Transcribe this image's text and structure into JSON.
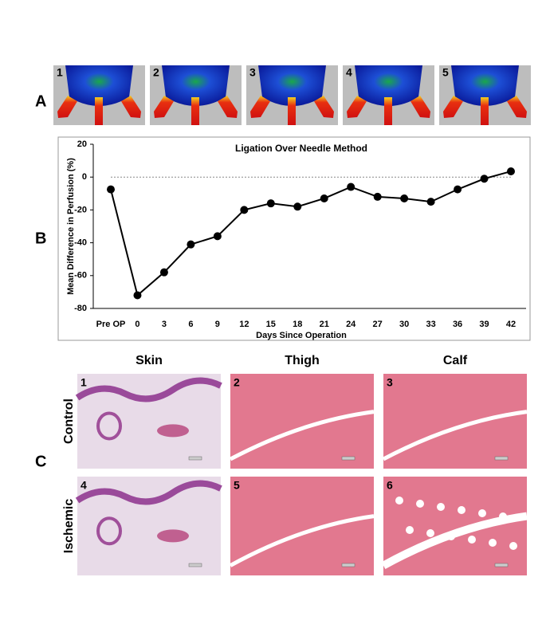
{
  "figure": {
    "panel_labels": [
      "A",
      "B",
      "C"
    ],
    "images_a": [
      "1",
      "2",
      "3",
      "4",
      "5"
    ],
    "columns": [
      "Skin",
      "Thigh",
      "Calf"
    ],
    "rows": [
      "Control",
      "Ischemic"
    ],
    "histology_numbers": [
      "1",
      "2",
      "3",
      "4",
      "5",
      "6"
    ]
  },
  "chart_data": {
    "type": "line",
    "title": "Ligation Over Needle Method",
    "x_label": "Days Since Operation",
    "y_label": "Mean Difference in Perfusion (%)",
    "categories": [
      "Pre OP",
      "0",
      "3",
      "6",
      "9",
      "12",
      "15",
      "18",
      "21",
      "24",
      "27",
      "30",
      "33",
      "36",
      "39",
      "42"
    ],
    "values": [
      -7.5,
      -72,
      -58,
      -41,
      -36,
      -20,
      -16,
      -18,
      -13,
      -6,
      -12,
      -13,
      -15,
      -7.5,
      -1,
      3.5
    ],
    "color": "#000000",
    "ylim": [
      -80,
      20
    ],
    "yticks": [
      -80,
      -60,
      -40,
      -20,
      0,
      20
    ]
  }
}
